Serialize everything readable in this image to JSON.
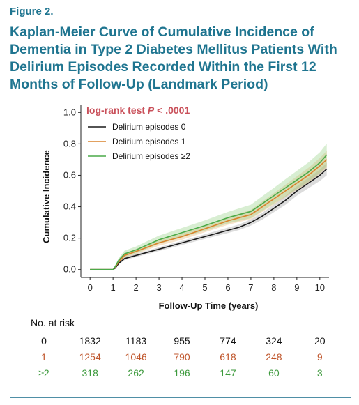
{
  "figure": {
    "label": "Figure 2.",
    "title": "Kaplan-Meier Curve of Cumulative Incidence of Dementia in Type 2 Diabetes Mellitus Patients With Delirium Episodes Recorded Within the First 12 Months of Follow-Up (Landmark Period)"
  },
  "colors": {
    "title": "#1f7590",
    "annotation": "#c9505a",
    "series_0": "#1a1a1a",
    "series_1": "#d9822b",
    "series_2": "#4aaa48",
    "risk_row_1": "#c0562c",
    "risk_row_2": "#3d9a3d"
  },
  "chart_data": {
    "type": "line",
    "xlabel": "Follow-Up Time (years)",
    "ylabel": "Cumulative Incidence",
    "xlim": [
      -0.4,
      10.4
    ],
    "ylim": [
      -0.05,
      1.05
    ],
    "xticks": [
      0,
      1,
      2,
      3,
      4,
      5,
      6,
      7,
      8,
      9,
      10
    ],
    "yticks": [
      "0.0",
      "0.2",
      "0.4",
      "0.6",
      "0.8",
      "1.0"
    ],
    "grid": false,
    "annotation": {
      "prefix": "log-rank test ",
      "p": "P",
      "rest": " < .0001"
    },
    "legend_position": "top-left",
    "series": [
      {
        "name": "Delirium episodes 0",
        "color": "#1a1a1a",
        "band_color": "#9a9a9a",
        "x": [
          0,
          1,
          1.1,
          1.25,
          1.5,
          2,
          3,
          4,
          5,
          6,
          6.5,
          7,
          7.5,
          8,
          8.5,
          9,
          9.5,
          10,
          10.3
        ],
        "y": [
          0,
          0,
          0.01,
          0.04,
          0.07,
          0.09,
          0.13,
          0.17,
          0.21,
          0.25,
          0.27,
          0.3,
          0.34,
          0.39,
          0.44,
          0.5,
          0.55,
          0.6,
          0.64
        ],
        "ci": [
          0,
          0,
          0.005,
          0.008,
          0.01,
          0.01,
          0.012,
          0.013,
          0.015,
          0.017,
          0.018,
          0.02,
          0.022,
          0.025,
          0.028,
          0.03,
          0.033,
          0.036,
          0.04
        ]
      },
      {
        "name": "Delirium episodes 1",
        "color": "#d9822b",
        "band_color": "#e8b36e",
        "x": [
          0,
          1,
          1.1,
          1.25,
          1.5,
          2,
          3,
          4,
          5,
          6,
          6.5,
          7,
          7.5,
          8,
          8.5,
          9,
          9.5,
          10,
          10.3
        ],
        "y": [
          0,
          0,
          0.015,
          0.05,
          0.09,
          0.115,
          0.17,
          0.21,
          0.26,
          0.31,
          0.33,
          0.35,
          0.4,
          0.45,
          0.5,
          0.55,
          0.6,
          0.66,
          0.7
        ],
        "ci": [
          0,
          0,
          0.006,
          0.01,
          0.014,
          0.016,
          0.018,
          0.02,
          0.022,
          0.025,
          0.027,
          0.03,
          0.033,
          0.036,
          0.04,
          0.043,
          0.047,
          0.05,
          0.055
        ]
      },
      {
        "name": "Delirium episodes ≥2",
        "color": "#4aaa48",
        "band_color": "#8fcf7f",
        "x": [
          0,
          1,
          1.1,
          1.25,
          1.5,
          2,
          3,
          4,
          5,
          6,
          6.5,
          7,
          7.5,
          8,
          8.5,
          9,
          9.5,
          10,
          10.3
        ],
        "y": [
          0,
          0,
          0.02,
          0.06,
          0.1,
          0.125,
          0.19,
          0.235,
          0.28,
          0.33,
          0.35,
          0.37,
          0.42,
          0.47,
          0.52,
          0.57,
          0.62,
          0.68,
          0.73
        ],
        "ci": [
          0,
          0,
          0.01,
          0.015,
          0.02,
          0.022,
          0.026,
          0.03,
          0.033,
          0.037,
          0.04,
          0.043,
          0.047,
          0.05,
          0.055,
          0.058,
          0.062,
          0.066,
          0.072
        ]
      }
    ],
    "risk_table": {
      "title": "No. at risk",
      "times": [
        0,
        2,
        4,
        6,
        8,
        10
      ],
      "rows": [
        {
          "label": "0",
          "counts": [
            "1832",
            "1183",
            "955",
            "774",
            "324",
            "20"
          ]
        },
        {
          "label": "1",
          "counts": [
            "1254",
            "1046",
            "790",
            "618",
            "248",
            "9"
          ]
        },
        {
          "label": "≥2",
          "counts": [
            "318",
            "262",
            "196",
            "147",
            "60",
            "3"
          ]
        }
      ]
    }
  }
}
